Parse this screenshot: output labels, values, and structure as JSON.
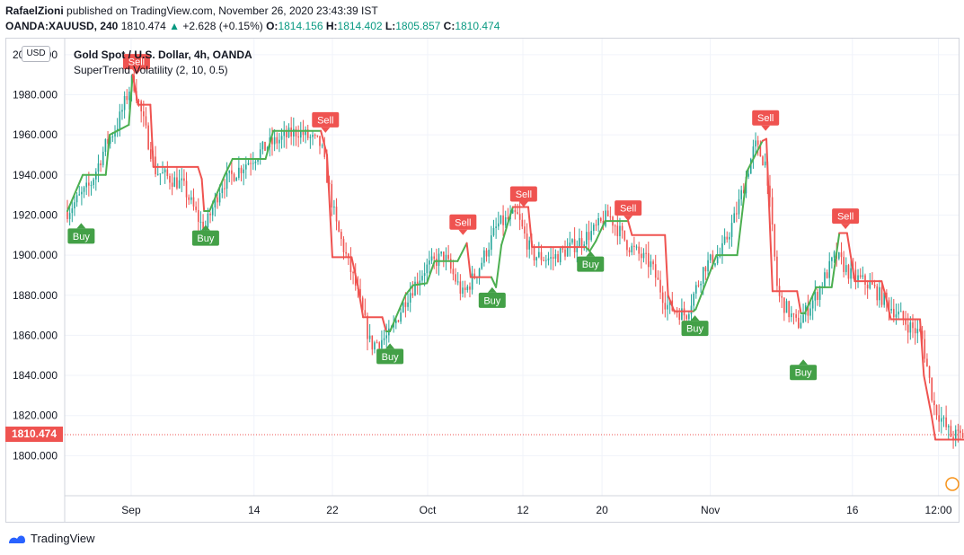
{
  "header": {
    "author": "RafaelZioni",
    "published": "published on TradingView.com, November 26, 2020 23:43:39 IST",
    "symbol": "OANDA:XAUUSD, 240",
    "last": "1810.474",
    "change": "+2.628 (+0.15%)",
    "o_label": "O:",
    "o": "1814.156",
    "h_label": "H:",
    "h": "1814.402",
    "l_label": "L:",
    "l": "1805.857",
    "c_label": "C:",
    "c": "1810.474"
  },
  "legend": {
    "title": "Gold Spot / U.S. Dollar, 4h, OANDA",
    "indicator": "SuperTrend Volatility (2, 10, 0.5)"
  },
  "currency": "USD",
  "brand": "TradingView",
  "colors": {
    "up": "#26a69a",
    "down": "#ef5350",
    "buy": "#43a047",
    "sell": "#ef5350",
    "trend_up": "#4caf50",
    "trend_down": "#ef5350"
  },
  "chart_data": {
    "type": "candlestick",
    "y_ticks": [
      "2000.000",
      "1980.000",
      "1960.000",
      "1940.000",
      "1920.000",
      "1900.000",
      "1880.000",
      "1860.000",
      "1840.000",
      "1820.000",
      "1800.000"
    ],
    "ylim": [
      1780,
      2008
    ],
    "x_ticks": [
      {
        "label": "Sep",
        "t": 0.083
      },
      {
        "label": "14",
        "t": 0.243
      },
      {
        "label": "22",
        "t": 0.345
      },
      {
        "label": "Oct",
        "t": 0.469
      },
      {
        "label": "12",
        "t": 0.593
      },
      {
        "label": "20",
        "t": 0.696
      },
      {
        "label": "Nov",
        "t": 0.837
      },
      {
        "label": "16",
        "t": 1.022
      },
      {
        "label": "12:00",
        "t": 1.134
      }
    ],
    "last_price": "1810.474",
    "last_value": 1810.474,
    "supertrend": [
      {
        "t": 0.0,
        "v": 1922,
        "d": "up"
      },
      {
        "t": 0.02,
        "v": 1940,
        "d": "up"
      },
      {
        "t": 0.05,
        "v": 1940,
        "d": "up"
      },
      {
        "t": 0.055,
        "v": 1960,
        "d": "up"
      },
      {
        "t": 0.08,
        "v": 1965,
        "d": "up"
      },
      {
        "t": 0.085,
        "v": 1990,
        "d": "up"
      },
      {
        "t": 0.092,
        "v": 1975,
        "d": "down"
      },
      {
        "t": 0.108,
        "v": 1975,
        "d": "down"
      },
      {
        "t": 0.112,
        "v": 1944,
        "d": "down"
      },
      {
        "t": 0.17,
        "v": 1944,
        "d": "down"
      },
      {
        "t": 0.175,
        "v": 1938,
        "d": "down"
      },
      {
        "t": 0.178,
        "v": 1922,
        "d": "down"
      },
      {
        "t": 0.185,
        "v": 1922,
        "d": "up"
      },
      {
        "t": 0.205,
        "v": 1940,
        "d": "up"
      },
      {
        "t": 0.215,
        "v": 1948,
        "d": "up"
      },
      {
        "t": 0.258,
        "v": 1948,
        "d": "up"
      },
      {
        "t": 0.268,
        "v": 1962,
        "d": "up"
      },
      {
        "t": 0.33,
        "v": 1962,
        "d": "up"
      },
      {
        "t": 0.338,
        "v": 1950,
        "d": "down"
      },
      {
        "t": 0.345,
        "v": 1899,
        "d": "down"
      },
      {
        "t": 0.37,
        "v": 1899,
        "d": "down"
      },
      {
        "t": 0.378,
        "v": 1885,
        "d": "down"
      },
      {
        "t": 0.385,
        "v": 1869,
        "d": "down"
      },
      {
        "t": 0.41,
        "v": 1869,
        "d": "down"
      },
      {
        "t": 0.415,
        "v": 1862,
        "d": "down"
      },
      {
        "t": 0.42,
        "v": 1862,
        "d": "up"
      },
      {
        "t": 0.44,
        "v": 1880,
        "d": "up"
      },
      {
        "t": 0.45,
        "v": 1885,
        "d": "up"
      },
      {
        "t": 0.468,
        "v": 1886,
        "d": "up"
      },
      {
        "t": 0.478,
        "v": 1897,
        "d": "up"
      },
      {
        "t": 0.508,
        "v": 1897,
        "d": "up"
      },
      {
        "t": 0.52,
        "v": 1906,
        "d": "up"
      },
      {
        "t": 0.525,
        "v": 1889,
        "d": "down"
      },
      {
        "t": 0.552,
        "v": 1889,
        "d": "down"
      },
      {
        "t": 0.558,
        "v": 1884,
        "d": "up"
      },
      {
        "t": 0.565,
        "v": 1905,
        "d": "up"
      },
      {
        "t": 0.575,
        "v": 1918,
        "d": "up"
      },
      {
        "t": 0.58,
        "v": 1924,
        "d": "up"
      },
      {
        "t": 0.59,
        "v": 1924,
        "d": "down"
      },
      {
        "t": 0.6,
        "v": 1924,
        "d": "down"
      },
      {
        "t": 0.605,
        "v": 1904,
        "d": "down"
      },
      {
        "t": 0.675,
        "v": 1904,
        "d": "down"
      },
      {
        "t": 0.68,
        "v": 1902,
        "d": "up"
      },
      {
        "t": 0.688,
        "v": 1907,
        "d": "up"
      },
      {
        "t": 0.7,
        "v": 1917,
        "d": "up"
      },
      {
        "t": 0.73,
        "v": 1917,
        "d": "up"
      },
      {
        "t": 0.735,
        "v": 1910,
        "d": "down"
      },
      {
        "t": 0.778,
        "v": 1910,
        "d": "down"
      },
      {
        "t": 0.782,
        "v": 1880,
        "d": "down"
      },
      {
        "t": 0.79,
        "v": 1872,
        "d": "down"
      },
      {
        "t": 0.815,
        "v": 1872,
        "d": "down"
      },
      {
        "t": 0.818,
        "v": 1873,
        "d": "up"
      },
      {
        "t": 0.83,
        "v": 1885,
        "d": "up"
      },
      {
        "t": 0.845,
        "v": 1900,
        "d": "up"
      },
      {
        "t": 0.872,
        "v": 1900,
        "d": "up"
      },
      {
        "t": 0.885,
        "v": 1942,
        "d": "up"
      },
      {
        "t": 0.905,
        "v": 1957,
        "d": "up"
      },
      {
        "t": 0.91,
        "v": 1958,
        "d": "down"
      },
      {
        "t": 0.918,
        "v": 1882,
        "d": "down"
      },
      {
        "t": 0.95,
        "v": 1882,
        "d": "down"
      },
      {
        "t": 0.955,
        "v": 1871,
        "d": "down"
      },
      {
        "t": 0.96,
        "v": 1871,
        "d": "up"
      },
      {
        "t": 0.975,
        "v": 1884,
        "d": "up"
      },
      {
        "t": 0.995,
        "v": 1884,
        "d": "up"
      },
      {
        "t": 1.005,
        "v": 1911,
        "d": "up"
      },
      {
        "t": 1.015,
        "v": 1911,
        "d": "down"
      },
      {
        "t": 1.025,
        "v": 1887,
        "d": "down"
      },
      {
        "t": 1.06,
        "v": 1887,
        "d": "down"
      },
      {
        "t": 1.065,
        "v": 1880,
        "d": "down"
      },
      {
        "t": 1.072,
        "v": 1868,
        "d": "down"
      },
      {
        "t": 1.11,
        "v": 1868,
        "d": "down"
      },
      {
        "t": 1.115,
        "v": 1840,
        "d": "down"
      },
      {
        "t": 1.125,
        "v": 1820,
        "d": "down"
      },
      {
        "t": 1.13,
        "v": 1808,
        "d": "down"
      },
      {
        "t": 1.175,
        "v": 1808,
        "d": "down"
      }
    ],
    "signals": [
      {
        "type": "Buy",
        "t": 0.018,
        "v": 1916
      },
      {
        "type": "Sell",
        "t": 0.09,
        "v": 1990
      },
      {
        "type": "Buy",
        "t": 0.18,
        "v": 1915
      },
      {
        "type": "Sell",
        "t": 0.336,
        "v": 1961
      },
      {
        "type": "Buy",
        "t": 0.42,
        "v": 1856
      },
      {
        "type": "Sell",
        "t": 0.515,
        "v": 1910
      },
      {
        "type": "Buy",
        "t": 0.553,
        "v": 1884
      },
      {
        "type": "Sell",
        "t": 0.594,
        "v": 1924
      },
      {
        "type": "Buy",
        "t": 0.681,
        "v": 1902
      },
      {
        "type": "Sell",
        "t": 0.73,
        "v": 1917
      },
      {
        "type": "Buy",
        "t": 0.817,
        "v": 1870
      },
      {
        "type": "Sell",
        "t": 0.909,
        "v": 1962
      },
      {
        "type": "Buy",
        "t": 0.958,
        "v": 1848
      },
      {
        "type": "Sell",
        "t": 1.013,
        "v": 1913
      }
    ],
    "candle_anchors": [
      [
        0.0,
        1922
      ],
      [
        0.03,
        1935
      ],
      [
        0.05,
        1955
      ],
      [
        0.065,
        1965
      ],
      [
        0.085,
        1988
      ],
      [
        0.1,
        1965
      ],
      [
        0.115,
        1942
      ],
      [
        0.15,
        1935
      ],
      [
        0.178,
        1912
      ],
      [
        0.2,
        1935
      ],
      [
        0.23,
        1945
      ],
      [
        0.262,
        1955
      ],
      [
        0.3,
        1962
      ],
      [
        0.33,
        1955
      ],
      [
        0.35,
        1915
      ],
      [
        0.375,
        1885
      ],
      [
        0.395,
        1855
      ],
      [
        0.42,
        1860
      ],
      [
        0.44,
        1878
      ],
      [
        0.465,
        1893
      ],
      [
        0.49,
        1900
      ],
      [
        0.515,
        1880
      ],
      [
        0.535,
        1893
      ],
      [
        0.56,
        1915
      ],
      [
        0.585,
        1920
      ],
      [
        0.605,
        1900
      ],
      [
        0.63,
        1898
      ],
      [
        0.66,
        1905
      ],
      [
        0.685,
        1912
      ],
      [
        0.705,
        1920
      ],
      [
        0.73,
        1905
      ],
      [
        0.76,
        1895
      ],
      [
        0.78,
        1875
      ],
      [
        0.805,
        1870
      ],
      [
        0.83,
        1895
      ],
      [
        0.85,
        1900
      ],
      [
        0.87,
        1920
      ],
      [
        0.895,
        1955
      ],
      [
        0.91,
        1945
      ],
      [
        0.925,
        1880
      ],
      [
        0.95,
        1865
      ],
      [
        0.975,
        1880
      ],
      [
        1.0,
        1900
      ],
      [
        1.02,
        1890
      ],
      [
        1.045,
        1885
      ],
      [
        1.07,
        1875
      ],
      [
        1.095,
        1865
      ],
      [
        1.112,
        1860
      ],
      [
        1.128,
        1825
      ],
      [
        1.15,
        1810
      ],
      [
        1.175,
        1810
      ]
    ]
  }
}
